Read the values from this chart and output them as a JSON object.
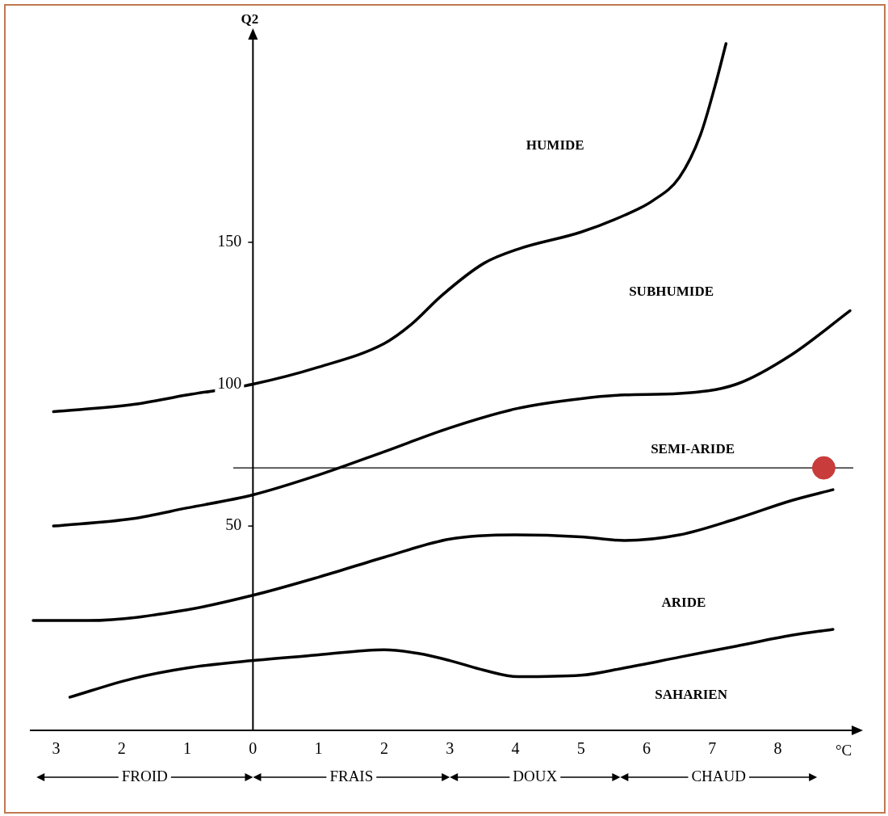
{
  "chart_data": {
    "type": "line",
    "ylabel": "Q2",
    "xlabel": "°C",
    "xlim": [
      -3.4,
      9.15
    ],
    "ylim": [
      -22,
      222
    ],
    "xticks": [
      {
        "value": -3,
        "label": "3"
      },
      {
        "value": -2,
        "label": "2"
      },
      {
        "value": -1,
        "label": "1"
      },
      0,
      1,
      2,
      3,
      4,
      5,
      6,
      7,
      8
    ],
    "yticks": [
      50,
      100,
      150
    ],
    "grid": false,
    "legend": false,
    "marker": "none",
    "line_style": "solid",
    "series": [
      {
        "color": "#000000",
        "x": [
          -3.04,
          -1.84,
          -1,
          0,
          1,
          2,
          2.4,
          2.88,
          3.52,
          4.04,
          5,
          5.66,
          6.09,
          6.5,
          6.82,
          7.05,
          7.21
        ],
        "values": [
          90.3,
          92.8,
          96.2,
          100,
          106,
          114.3,
          120.8,
          131.3,
          142.6,
          147.6,
          153.6,
          159.5,
          164.6,
          172.9,
          187.8,
          205.7,
          220
        ]
      },
      {
        "color": "#000000",
        "x": [
          -3.04,
          -1.84,
          -1,
          0,
          1,
          2,
          3,
          4.04,
          5,
          5.66,
          6.5,
          7.37,
          8.21,
          9.1
        ],
        "values": [
          50,
          52.6,
          56.4,
          61,
          68,
          76.2,
          84.6,
          91.5,
          94.9,
          96.2,
          96.7,
          100,
          110.4,
          125.9
        ]
      },
      {
        "color": "#000000",
        "x": [
          -3.35,
          -2.51,
          -1,
          0,
          1,
          2,
          3,
          4,
          5,
          5.66,
          6.5,
          7.37,
          8.21,
          8.84
        ],
        "values": [
          16.7,
          16.7,
          20.5,
          25.6,
          32,
          39,
          45.4,
          46.9,
          46.2,
          44.9,
          46.9,
          52.6,
          59,
          62.8
        ]
      },
      {
        "color": "#000000",
        "x": [
          -2.79,
          -1.84,
          -1,
          0,
          1,
          2,
          2.52,
          3,
          3.52,
          4.04,
          5,
          5.66,
          6.5,
          7.37,
          8.21,
          8.84
        ],
        "values": [
          -10.3,
          -3.8,
          0,
          2.6,
          4.6,
          6.4,
          5.1,
          2.6,
          -0.8,
          -3.1,
          -2.6,
          0,
          3.8,
          7.7,
          11.5,
          13.6
        ]
      },
      {
        "type": "scatter",
        "marker": "circle",
        "color": "#c83c3c",
        "x": [
          8.7
        ],
        "values": [
          70.5
        ]
      }
    ],
    "ref_lines": [
      {
        "axis": "y",
        "value": 70.5,
        "color": "#000000"
      }
    ],
    "annotations": [
      "HUMIDE",
      "SUBHUMIDE",
      "SEMI-ARIDE",
      "ARIDE",
      "SAHARIEN",
      "FROID",
      "FRAIS",
      "DOUX",
      "CHAUD"
    ]
  }
}
